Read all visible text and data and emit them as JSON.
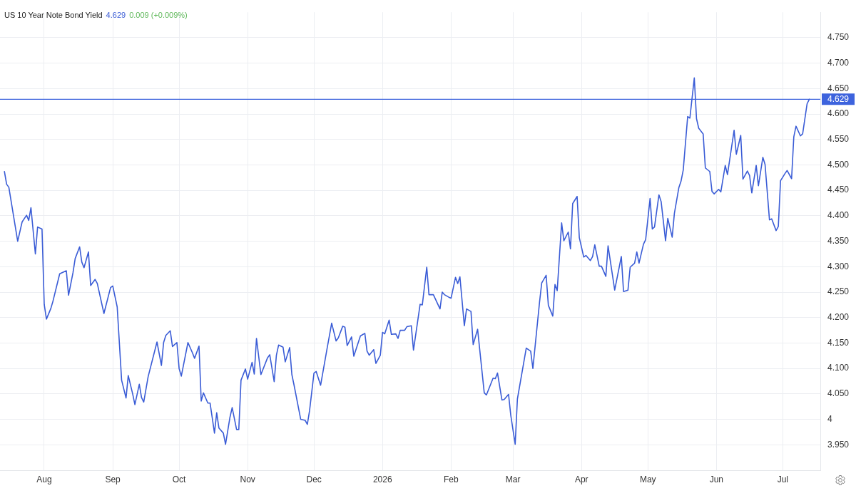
{
  "chart_data": {
    "type": "line",
    "title": "US 10 Year Note Bond Yield",
    "annotations": [
      "4.629",
      "0.009 (+0.009%)"
    ],
    "x": [
      "2025-07-14",
      "2025-07-15",
      "2025-07-16",
      "2025-07-20",
      "2025-07-22",
      "2025-07-24",
      "2025-07-25",
      "2025-07-26",
      "2025-07-28",
      "2025-07-29",
      "2025-07-31",
      "2025-08-01",
      "2025-08-02",
      "2025-08-04",
      "2025-08-05",
      "2025-08-08",
      "2025-08-11",
      "2025-08-12",
      "2025-08-14",
      "2025-08-15",
      "2025-08-17",
      "2025-08-18",
      "2025-08-19",
      "2025-08-21",
      "2025-08-22",
      "2025-08-24",
      "2025-08-25",
      "2025-08-28",
      "2025-08-31",
      "2025-09-01",
      "2025-09-03",
      "2025-09-05",
      "2025-09-07",
      "2025-09-08",
      "2025-09-10",
      "2025-09-11",
      "2025-09-13",
      "2025-09-14",
      "2025-09-15",
      "2025-09-17",
      "2025-09-21",
      "2025-09-23",
      "2025-09-24",
      "2025-09-25",
      "2025-09-27",
      "2025-09-28",
      "2025-09-30",
      "2025-10-01",
      "2025-10-02",
      "2025-10-05",
      "2025-10-07",
      "2025-10-08",
      "2025-10-10",
      "2025-10-11",
      "2025-10-12",
      "2025-10-14",
      "2025-10-15",
      "2025-10-17",
      "2025-10-18",
      "2025-10-19",
      "2025-10-21",
      "2025-10-22",
      "2025-10-24",
      "2025-10-25",
      "2025-10-27",
      "2025-10-28",
      "2025-10-29",
      "2025-10-31",
      "2025-11-01",
      "2025-11-03",
      "2025-11-04",
      "2025-11-05",
      "2025-11-07",
      "2025-11-10",
      "2025-11-11",
      "2025-11-13",
      "2025-11-14",
      "2025-11-15",
      "2025-11-17",
      "2025-11-18",
      "2025-11-20",
      "2025-11-21",
      "2025-11-22",
      "2025-11-25",
      "2025-11-27",
      "2025-11-28",
      "2025-11-29",
      "2025-12-01",
      "2025-12-02",
      "2025-12-04",
      "2025-12-07",
      "2025-12-09",
      "2025-12-11",
      "2025-12-12",
      "2025-12-14",
      "2025-12-15",
      "2025-12-16",
      "2025-12-18",
      "2025-12-19",
      "2025-12-22",
      "2025-12-24",
      "2025-12-25",
      "2025-12-26",
      "2025-12-28",
      "2025-12-29",
      "2025-12-31",
      "2026-01-01",
      "2026-01-02",
      "2026-01-04",
      "2026-01-05",
      "2026-01-07",
      "2026-01-08",
      "2026-01-09",
      "2026-01-11",
      "2026-01-12",
      "2026-01-14",
      "2026-01-15",
      "2026-01-18",
      "2026-01-19",
      "2026-01-21",
      "2026-01-22",
      "2026-01-24",
      "2026-01-27",
      "2026-01-28",
      "2026-01-29",
      "2026-01-31",
      "2026-02-01",
      "2026-02-03",
      "2026-02-04",
      "2026-02-05",
      "2026-02-07",
      "2026-02-08",
      "2026-02-10",
      "2026-02-11",
      "2026-02-13",
      "2026-02-16",
      "2026-02-17",
      "2026-02-20",
      "2026-02-21",
      "2026-02-22",
      "2026-02-24",
      "2026-02-25",
      "2026-02-27",
      "2026-02-28",
      "2026-03-02",
      "2026-03-03",
      "2026-03-07",
      "2026-03-09",
      "2026-03-10",
      "2026-03-13",
      "2026-03-14",
      "2026-03-16",
      "2026-03-17",
      "2026-03-19",
      "2026-03-20",
      "2026-03-21",
      "2026-03-23",
      "2026-03-24",
      "2026-03-26",
      "2026-03-27",
      "2026-03-28",
      "2026-03-30",
      "2026-03-31",
      "2026-04-02",
      "2026-04-03",
      "2026-04-05",
      "2026-04-06",
      "2026-04-07",
      "2026-04-09",
      "2026-04-10",
      "2026-04-12",
      "2026-04-13",
      "2026-04-16",
      "2026-04-19",
      "2026-04-20",
      "2026-04-22",
      "2026-04-23",
      "2026-04-25",
      "2026-04-26",
      "2026-04-27",
      "2026-04-29",
      "2026-04-30",
      "2026-05-02",
      "2026-05-03",
      "2026-05-04",
      "2026-05-06",
      "2026-05-07",
      "2026-05-09",
      "2026-05-10",
      "2026-05-12",
      "2026-05-13",
      "2026-05-15",
      "2026-05-16",
      "2026-05-17",
      "2026-05-19",
      "2026-05-20",
      "2026-05-22",
      "2026-05-23",
      "2026-05-24",
      "2026-05-26",
      "2026-05-27",
      "2026-05-29",
      "2026-05-30",
      "2026-05-31",
      "2026-06-02",
      "2026-06-03",
      "2026-06-05",
      "2026-06-06",
      "2026-06-09",
      "2026-06-10",
      "2026-06-12",
      "2026-06-13",
      "2026-06-15",
      "2026-06-16",
      "2026-06-17",
      "2026-06-19",
      "2026-06-20",
      "2026-06-22",
      "2026-06-23",
      "2026-06-25",
      "2026-06-26",
      "2026-06-28",
      "2026-06-29",
      "2026-06-30",
      "2026-07-02",
      "2026-07-03",
      "2026-07-05",
      "2026-07-06",
      "2026-07-07",
      "2026-07-09",
      "2026-07-10",
      "2026-07-12",
      "2026-07-13"
    ],
    "values": [
      4.487,
      4.462,
      4.456,
      4.35,
      4.388,
      4.401,
      4.391,
      4.416,
      4.325,
      4.378,
      4.374,
      4.226,
      4.197,
      4.218,
      4.233,
      4.286,
      4.292,
      4.244,
      4.288,
      4.316,
      4.339,
      4.309,
      4.298,
      4.329,
      4.263,
      4.275,
      4.267,
      4.208,
      4.259,
      4.262,
      4.221,
      4.077,
      4.042,
      4.086,
      4.05,
      4.029,
      4.069,
      4.043,
      4.034,
      4.084,
      4.152,
      4.106,
      4.151,
      4.165,
      4.174,
      4.143,
      4.151,
      4.1,
      4.085,
      4.151,
      4.131,
      4.12,
      4.144,
      4.036,
      4.052,
      4.032,
      4.032,
      3.973,
      4.013,
      3.983,
      3.973,
      3.951,
      4.004,
      4.023,
      3.98,
      3.98,
      4.077,
      4.099,
      4.079,
      4.112,
      4.089,
      4.159,
      4.088,
      4.121,
      4.127,
      4.074,
      4.126,
      4.146,
      4.142,
      4.113,
      4.141,
      4.088,
      4.067,
      4.0,
      3.998,
      3.99,
      4.017,
      4.091,
      4.094,
      4.067,
      4.141,
      4.189,
      4.154,
      4.16,
      4.183,
      4.181,
      4.145,
      4.162,
      4.124,
      4.164,
      4.169,
      4.134,
      4.126,
      4.137,
      4.11,
      4.126,
      4.171,
      4.168,
      4.195,
      4.167,
      4.168,
      4.159,
      4.175,
      4.175,
      4.182,
      4.184,
      4.136,
      4.226,
      4.225,
      4.299,
      4.245,
      4.245,
      4.217,
      4.25,
      4.245,
      4.24,
      4.238,
      4.279,
      4.267,
      4.28,
      4.184,
      4.217,
      4.212,
      4.147,
      4.177,
      4.052,
      4.048,
      4.081,
      4.08,
      4.091,
      4.038,
      4.039,
      4.049,
      4.008,
      3.951,
      4.04,
      4.14,
      4.134,
      4.1,
      4.23,
      4.268,
      4.283,
      4.224,
      4.203,
      4.265,
      4.253,
      4.386,
      4.351,
      4.368,
      4.335,
      4.424,
      4.438,
      4.357,
      4.319,
      4.322,
      4.312,
      4.32,
      4.343,
      4.301,
      4.301,
      4.281,
      4.341,
      4.254,
      4.32,
      4.251,
      4.254,
      4.299,
      4.307,
      4.329,
      4.307,
      4.344,
      4.353,
      4.434,
      4.374,
      4.378,
      4.441,
      4.428,
      4.351,
      4.395,
      4.358,
      4.405,
      4.455,
      4.468,
      4.49,
      4.595,
      4.592,
      4.671,
      4.591,
      4.572,
      4.561,
      4.494,
      4.487,
      4.448,
      4.443,
      4.452,
      4.447,
      4.499,
      4.481,
      4.568,
      4.521,
      4.558,
      4.472,
      4.488,
      4.479,
      4.445,
      4.499,
      4.459,
      4.515,
      4.501,
      4.392,
      4.394,
      4.371,
      4.379,
      4.469,
      4.483,
      4.489,
      4.473,
      4.555,
      4.576,
      4.557,
      4.561,
      4.62,
      4.629
    ],
    "color": "#3a5cd6",
    "xlim": [
      "2025-07-12",
      "2026-07-18"
    ],
    "xticks": [
      {
        "value": "2025-08-01",
        "label": "Aug"
      },
      {
        "value": "2025-09-01",
        "label": "Sep"
      },
      {
        "value": "2025-10-01",
        "label": "Oct"
      },
      {
        "value": "2025-11-01",
        "label": "Nov"
      },
      {
        "value": "2025-12-01",
        "label": "Dec"
      },
      {
        "value": "2026-01-01",
        "label": "2026"
      },
      {
        "value": "2026-02-01",
        "label": "Feb"
      },
      {
        "value": "2026-03-01",
        "label": "Mar"
      },
      {
        "value": "2026-04-01",
        "label": "Apr"
      },
      {
        "value": "2026-05-01",
        "label": "May"
      },
      {
        "value": "2026-06-01",
        "label": "Jun"
      },
      {
        "value": "2026-07-01",
        "label": "Jul"
      }
    ],
    "ylim": [
      3.9,
      4.8
    ],
    "yticks": [
      {
        "value": 3.95,
        "label": "3.950"
      },
      4,
      {
        "value": 4.05,
        "label": "4.050"
      },
      {
        "value": 4.1,
        "label": "4.100"
      },
      {
        "value": 4.15,
        "label": "4.150"
      },
      {
        "value": 4.2,
        "label": "4.200"
      },
      {
        "value": 4.25,
        "label": "4.250"
      },
      {
        "value": 4.3,
        "label": "4.300"
      },
      {
        "value": 4.35,
        "label": "4.350"
      },
      {
        "value": 4.4,
        "label": "4.400"
      },
      {
        "value": 4.45,
        "label": "4.450"
      },
      {
        "value": 4.5,
        "label": "4.500"
      },
      {
        "value": 4.55,
        "label": "4.550"
      },
      {
        "value": 4.6,
        "label": "4.600"
      },
      {
        "value": 4.65,
        "label": "4.650"
      },
      {
        "value": 4.7,
        "label": "4.700"
      },
      {
        "value": 4.75,
        "label": "4.750"
      }
    ],
    "ref_lines": [
      {
        "axis": "y",
        "value": 4.629,
        "label": "4.629",
        "color": "#3d63dd"
      }
    ],
    "grid": true
  }
}
